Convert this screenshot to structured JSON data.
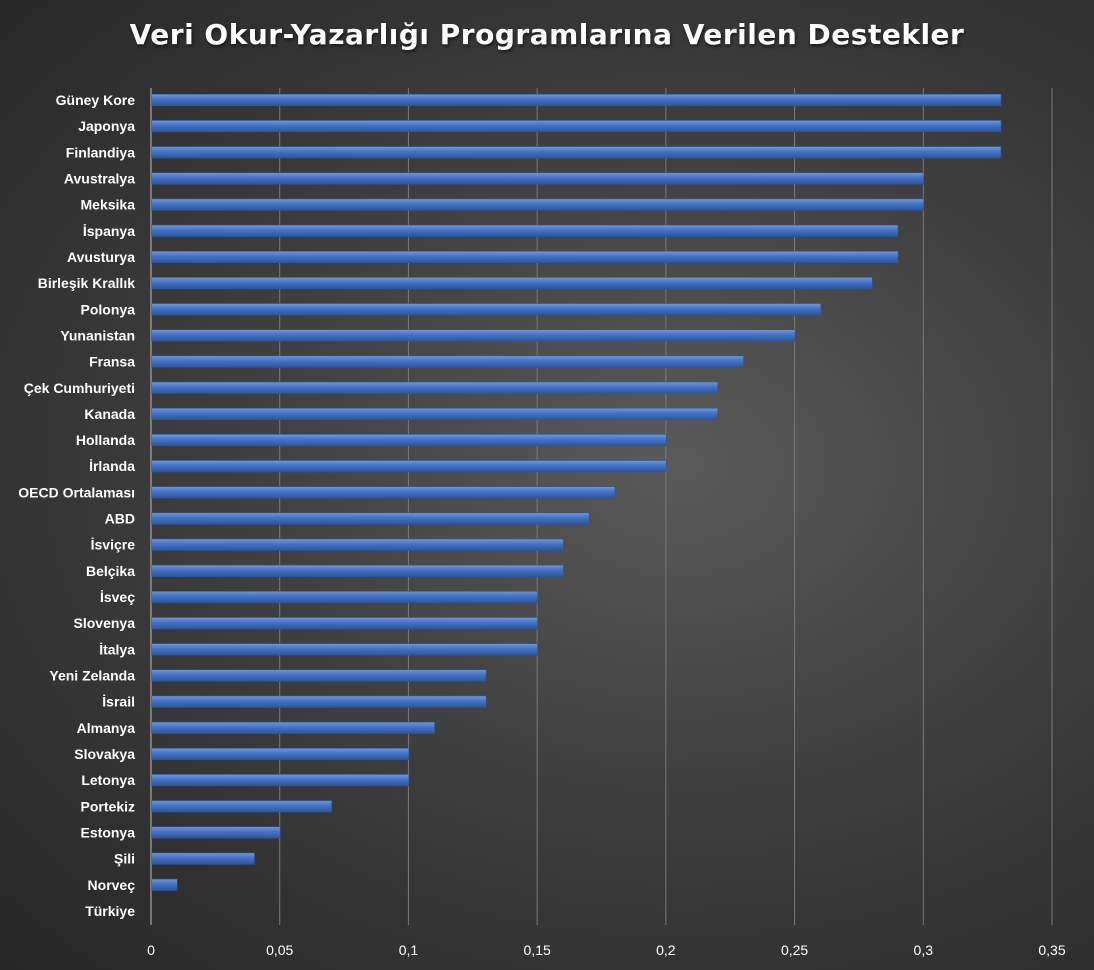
{
  "chart_data": {
    "type": "bar",
    "orientation": "horizontal",
    "title": "Veri Okur-Yazarlığı Programlarına Verilen Destekler",
    "xlabel": "",
    "ylabel": "",
    "categories": [
      "Güney Kore",
      "Japonya",
      "Finlandiya",
      "Avustralya",
      "Meksika",
      "İspanya",
      "Avusturya",
      "Birleşik Krallık",
      "Polonya",
      "Yunanistan",
      "Fransa",
      "Çek Cumhuriyeti",
      "Kanada",
      "Hollanda",
      "İrlanda",
      "OECD Ortalaması",
      "ABD",
      "İsviçre",
      "Belçika",
      "İsveç",
      "Slovenya",
      "İtalya",
      "Yeni Zelanda",
      "İsrail",
      "Almanya",
      "Slovakya",
      "Letonya",
      "Portekiz",
      "Estonya",
      "Şili",
      "Norveç",
      "Türkiye"
    ],
    "values": [
      0.33,
      0.33,
      0.33,
      0.3,
      0.3,
      0.29,
      0.29,
      0.28,
      0.26,
      0.25,
      0.23,
      0.22,
      0.22,
      0.2,
      0.2,
      0.18,
      0.17,
      0.16,
      0.16,
      0.15,
      0.15,
      0.15,
      0.13,
      0.13,
      0.11,
      0.1,
      0.1,
      0.07,
      0.05,
      0.04,
      0.01,
      0
    ],
    "xlim": [
      0,
      0.35
    ],
    "xticks": [
      0,
      0.05,
      0.1,
      0.15,
      0.2,
      0.25,
      0.3,
      0.35
    ],
    "xtick_labels": [
      "0",
      "0,05",
      "0,1",
      "0,15",
      "0,2",
      "0,25",
      "0,3",
      "0,35"
    ],
    "grid": true,
    "legend": "none",
    "bar_color": "#4472C4",
    "background_color": "#3f3f3f",
    "text_color": "#ffffff"
  }
}
